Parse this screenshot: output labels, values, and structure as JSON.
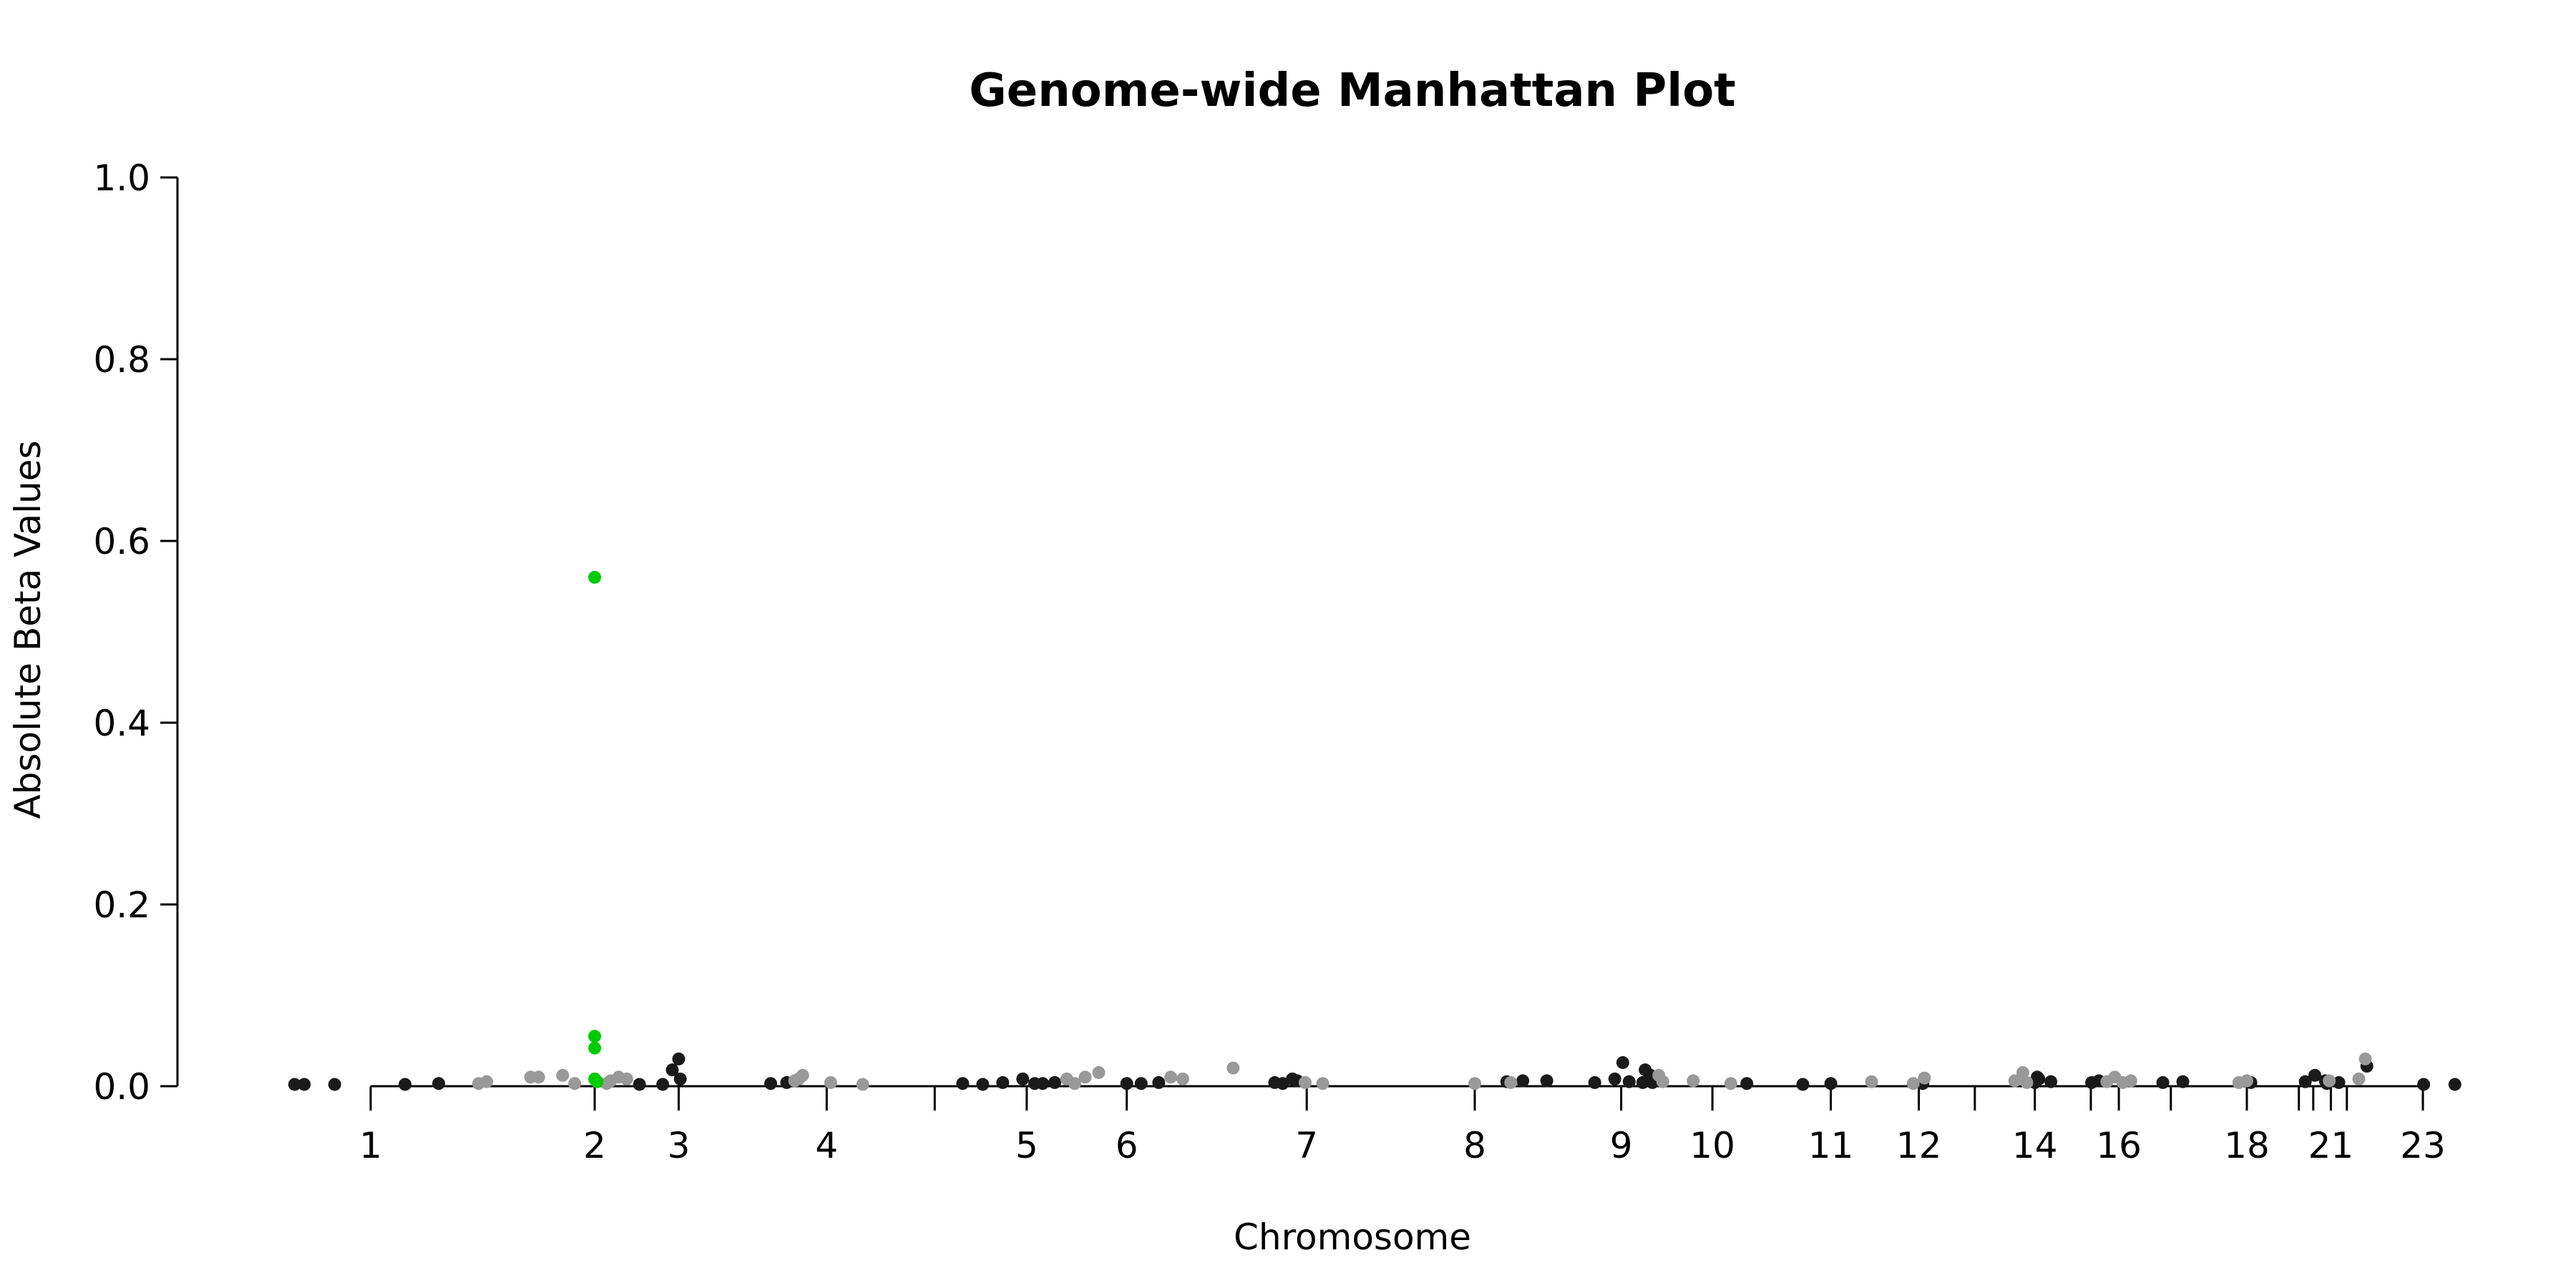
{
  "chart_data": {
    "type": "scatter",
    "title": "Genome-wide Manhattan Plot",
    "xlabel": "Chromosome",
    "ylabel": "Absolute Beta Values",
    "ylim": [
      0,
      1.0
    ],
    "yticks": [
      "0.0",
      "0.2",
      "0.4",
      "0.6",
      "0.8",
      "1.0"
    ],
    "grid": false,
    "legend": "none",
    "x_unit": "cumulative genomic position (Mb)",
    "xlim": [
      -120,
      3080
    ],
    "chromosome_ticks": [
      {
        "label": "1",
        "pos": 0
      },
      {
        "label": "2",
        "pos": 280
      },
      {
        "label": "3",
        "pos": 385
      },
      {
        "label": "4",
        "pos": 570
      },
      {
        "label": "",
        "pos": 705
      },
      {
        "label": "5",
        "pos": 820
      },
      {
        "label": "6",
        "pos": 945
      },
      {
        "label": "7",
        "pos": 1170
      },
      {
        "label": "8",
        "pos": 1380
      },
      {
        "label": "9",
        "pos": 1563
      },
      {
        "label": "10",
        "pos": 1677
      },
      {
        "label": "11",
        "pos": 1825
      },
      {
        "label": "12",
        "pos": 1935
      },
      {
        "label": "",
        "pos": 2005
      },
      {
        "label": "14",
        "pos": 2080
      },
      {
        "label": "",
        "pos": 2150
      },
      {
        "label": "16",
        "pos": 2185
      },
      {
        "label": "",
        "pos": 2250
      },
      {
        "label": "18",
        "pos": 2345
      },
      {
        "label": "",
        "pos": 2410
      },
      {
        "label": "",
        "pos": 2428
      },
      {
        "label": "21",
        "pos": 2450
      },
      {
        "label": "",
        "pos": 2470
      },
      {
        "label": "23",
        "pos": 2565
      }
    ],
    "colors": {
      "odd": "#1a1a1a",
      "even": "#999999",
      "highlight": "#00cc00"
    },
    "series": [
      {
        "points": [
          [
            -95,
            0.002
          ],
          [
            -83,
            0.002
          ],
          [
            -45,
            0.002
          ],
          [
            43,
            0.002
          ],
          [
            85,
            0.003
          ],
          [
            336,
            0.002
          ],
          [
            365,
            0.002
          ],
          [
            377,
            0.018
          ],
          [
            385,
            0.03
          ],
          [
            387,
            0.008
          ],
          [
            500,
            0.003
          ],
          [
            520,
            0.004
          ],
          [
            740,
            0.003
          ],
          [
            765,
            0.002
          ],
          [
            790,
            0.004
          ],
          [
            815,
            0.008
          ],
          [
            830,
            0.003
          ],
          [
            840,
            0.003
          ],
          [
            855,
            0.004
          ],
          [
            945,
            0.003
          ],
          [
            963,
            0.003
          ],
          [
            985,
            0.004
          ],
          [
            1130,
            0.004
          ],
          [
            1140,
            0.003
          ],
          [
            1152,
            0.008
          ],
          [
            1158,
            0.006
          ],
          [
            1420,
            0.005
          ],
          [
            1440,
            0.006
          ],
          [
            1470,
            0.006
          ],
          [
            1530,
            0.004
          ],
          [
            1555,
            0.008
          ],
          [
            1565,
            0.026
          ],
          [
            1573,
            0.005
          ],
          [
            1590,
            0.004
          ],
          [
            1593,
            0.018
          ],
          [
            1600,
            0.012
          ],
          [
            1602,
            0.004
          ],
          [
            1720,
            0.003
          ],
          [
            1790,
            0.002
          ],
          [
            1825,
            0.003
          ],
          [
            1940,
            0.003
          ],
          [
            2080,
            0.004
          ],
          [
            2083,
            0.01
          ],
          [
            2085,
            0.008
          ],
          [
            2100,
            0.005
          ],
          [
            2151,
            0.004
          ],
          [
            2160,
            0.006
          ],
          [
            2240,
            0.004
          ],
          [
            2265,
            0.005
          ],
          [
            2350,
            0.004
          ],
          [
            2418,
            0.005
          ],
          [
            2430,
            0.012
          ],
          [
            2443,
            0.006
          ],
          [
            2445,
            0.003
          ],
          [
            2460,
            0.004
          ],
          [
            2495,
            0.022
          ],
          [
            2566,
            0.002
          ],
          [
            2605,
            0.002
          ]
        ]
      },
      {
        "points": [
          [
            135,
            0.003
          ],
          [
            145,
            0.005
          ],
          [
            200,
            0.01
          ],
          [
            210,
            0.01
          ],
          [
            240,
            0.012
          ],
          [
            255,
            0.003
          ],
          [
            295,
            0.003
          ],
          [
            300,
            0.006
          ],
          [
            310,
            0.01
          ],
          [
            320,
            0.008
          ],
          [
            530,
            0.006
          ],
          [
            535,
            0.008
          ],
          [
            540,
            0.012
          ],
          [
            575,
            0.004
          ],
          [
            615,
            0.002
          ],
          [
            870,
            0.008
          ],
          [
            880,
            0.003
          ],
          [
            893,
            0.01
          ],
          [
            910,
            0.015
          ],
          [
            1000,
            0.01
          ],
          [
            1015,
            0.008
          ],
          [
            1078,
            0.02
          ],
          [
            1168,
            0.004
          ],
          [
            1190,
            0.003
          ],
          [
            1380,
            0.003
          ],
          [
            1425,
            0.004
          ],
          [
            1610,
            0.012
          ],
          [
            1615,
            0.005
          ],
          [
            1653,
            0.006
          ],
          [
            1700,
            0.003
          ],
          [
            1876,
            0.005
          ],
          [
            1928,
            0.003
          ],
          [
            1942,
            0.009
          ],
          [
            2055,
            0.006
          ],
          [
            2065,
            0.015
          ],
          [
            2070,
            0.004
          ],
          [
            2170,
            0.005
          ],
          [
            2180,
            0.01
          ],
          [
            2190,
            0.004
          ],
          [
            2200,
            0.006
          ],
          [
            2335,
            0.004
          ],
          [
            2345,
            0.006
          ],
          [
            2448,
            0.006
          ],
          [
            2485,
            0.008
          ],
          [
            2493,
            0.03
          ]
        ]
      },
      {
        "points": [
          [
            280,
            0.56
          ],
          [
            280,
            0.055
          ],
          [
            280,
            0.042
          ],
          [
            280,
            0.008
          ],
          [
            283,
            0.005
          ]
        ]
      }
    ]
  }
}
